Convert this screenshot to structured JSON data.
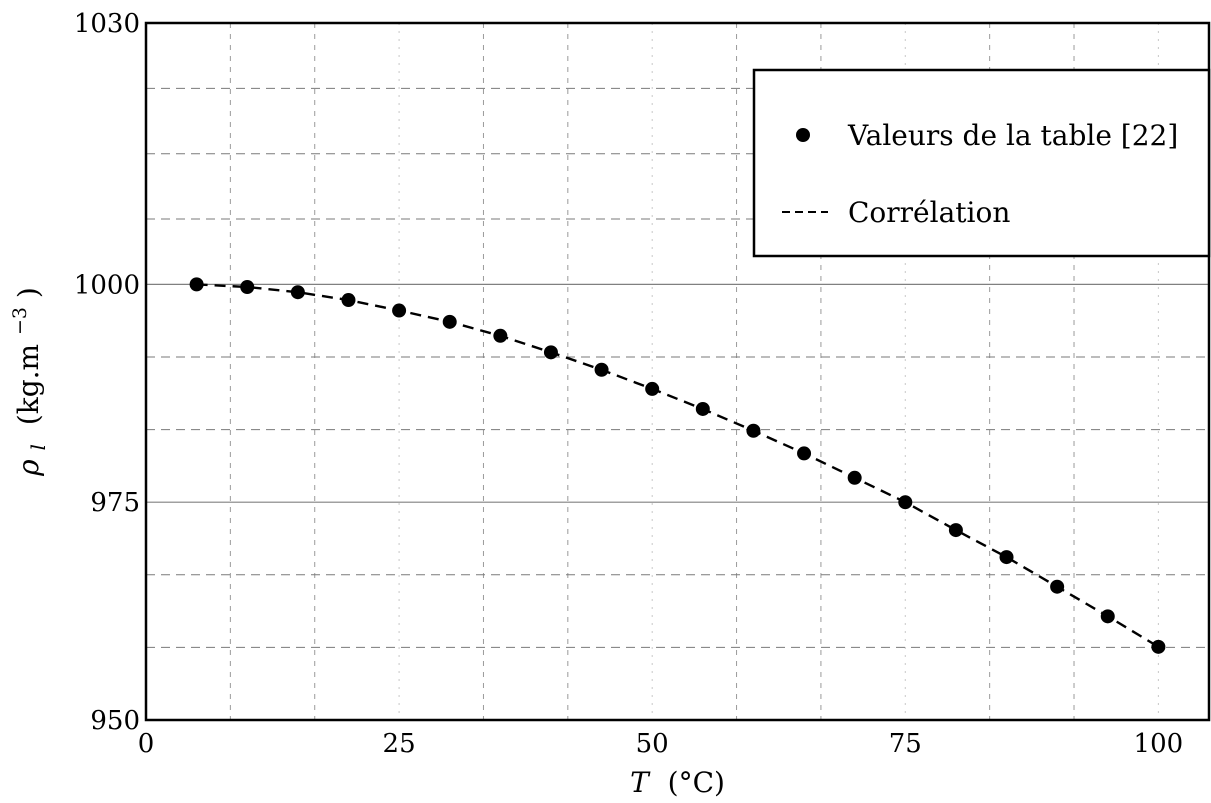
{
  "chart_data": {
    "type": "scatter",
    "xlabel_symbol": "T",
    "xlabel_unit": "(°C)",
    "ylabel_symbol": "ρ",
    "ylabel_subscript": "l",
    "ylabel_unit": "(kg.m",
    "ylabel_exponent": "−3",
    "ylabel_close": ")",
    "xlim": [
      0,
      105
    ],
    "ylim": [
      950,
      1030
    ],
    "x_ticks": [
      0,
      25,
      50,
      75,
      100
    ],
    "x_tick_labels": [
      "0",
      "25",
      "50",
      "75",
      "100"
    ],
    "y_ticks": [
      950,
      975,
      1000,
      1030
    ],
    "y_tick_labels": [
      "950",
      "975",
      "1000",
      "1030"
    ],
    "grid": true,
    "legend_position": "top-right",
    "series": [
      {
        "name": "Valeurs de la table [22]",
        "style": "markers",
        "x": [
          5,
          10,
          15,
          20,
          25,
          30,
          35,
          40,
          45,
          50,
          55,
          60,
          65,
          70,
          75,
          80,
          85,
          90,
          95,
          100
        ],
        "y": [
          1000.0,
          999.7,
          999.1,
          998.2,
          997.0,
          995.7,
          994.1,
          992.2,
          990.2,
          988.0,
          985.7,
          983.2,
          980.6,
          977.8,
          975.0,
          971.8,
          968.7,
          965.3,
          961.9,
          958.4
        ]
      },
      {
        "name": "Corrélation",
        "style": "dashed-line",
        "x": [
          5,
          10,
          15,
          20,
          25,
          30,
          35,
          40,
          45,
          50,
          55,
          60,
          65,
          70,
          75,
          80,
          85,
          90,
          95,
          100
        ],
        "y": [
          1000.0,
          999.7,
          999.1,
          998.2,
          997.0,
          995.7,
          994.1,
          992.2,
          990.2,
          988.0,
          985.7,
          983.2,
          980.6,
          977.8,
          975.0,
          971.8,
          968.7,
          965.3,
          961.9,
          958.4
        ]
      }
    ]
  }
}
